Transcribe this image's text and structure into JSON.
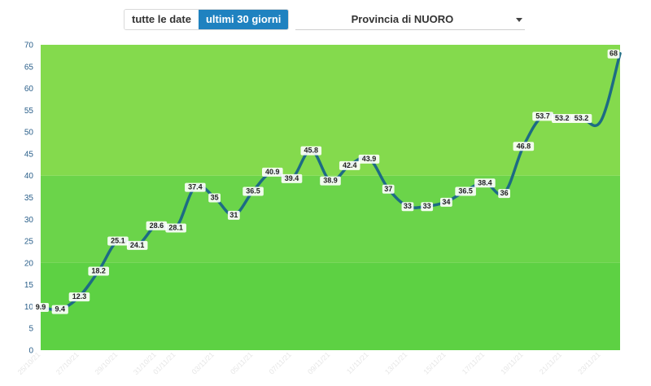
{
  "controls": {
    "range_buttons": [
      {
        "label": "tutte le date",
        "active": false
      },
      {
        "label": "ultimi 30 giorni",
        "active": true
      }
    ],
    "province_select": {
      "value": "Provincia di NUORO"
    }
  },
  "colors": {
    "line": "#1d6b84",
    "bg_low": "#5dd143",
    "bg_mid": "#6bd44a",
    "bg_high": "#84da4d",
    "active_button": "#1f82c0"
  },
  "chart_data": {
    "type": "line",
    "title": "",
    "xlabel": "",
    "ylabel": "",
    "ylim": [
      0,
      70
    ],
    "yticks": [
      0,
      5,
      10,
      15,
      20,
      25,
      30,
      35,
      40,
      45,
      50,
      55,
      60,
      65,
      70
    ],
    "x": [
      "25/10/21",
      "26/10/21",
      "27/10/21",
      "28/10/21",
      "29/10/21",
      "30/10/21",
      "31/10/21",
      "01/11/21",
      "02/11/21",
      "03/11/21",
      "04/11/21",
      "05/11/21",
      "06/11/21",
      "07/11/21",
      "08/11/21",
      "09/11/21",
      "10/11/21",
      "11/11/21",
      "12/11/21",
      "13/11/21",
      "14/11/21",
      "15/11/21",
      "16/11/21",
      "17/11/21",
      "18/11/21",
      "19/11/21",
      "20/11/21",
      "21/11/21",
      "22/11/21",
      "23/11/21",
      "24/11/21"
    ],
    "xtick_labels": [
      "25/10/21",
      "27/10/21",
      "29/10/21",
      "31/10/21",
      "01/11/21",
      "03/11/21",
      "05/11/21",
      "07/11/21",
      "09/11/21",
      "11/11/21",
      "13/11/21",
      "15/11/21",
      "17/11/21",
      "19/11/21",
      "21/11/21",
      "23/11/21"
    ],
    "series": [
      {
        "values": [
          9.9,
          9.4,
          12.3,
          18.2,
          25.1,
          24.1,
          28.6,
          28.1,
          37.4,
          35,
          31,
          36.5,
          40.9,
          39.4,
          45.8,
          38.9,
          42.4,
          43.9,
          37,
          33,
          33,
          34,
          36.5,
          38.4,
          36,
          46.8,
          53.7,
          53.2,
          53.2,
          52.5,
          68
        ],
        "labels": [
          "9.9",
          "9.4",
          "12.3",
          "18.2",
          "25.1",
          "24.1",
          "28.6",
          "28.1",
          "37.4",
          "35",
          "31",
          "36.5",
          "40.9",
          "39.4",
          "45.8",
          "38.9",
          "42.4",
          "43.9",
          "37",
          "33",
          "33",
          "34",
          "36.5",
          "38.4",
          "36",
          "46.8",
          "53.7",
          "53.2",
          "53.2",
          "",
          "68"
        ]
      }
    ],
    "grid": false,
    "legend": "none"
  }
}
